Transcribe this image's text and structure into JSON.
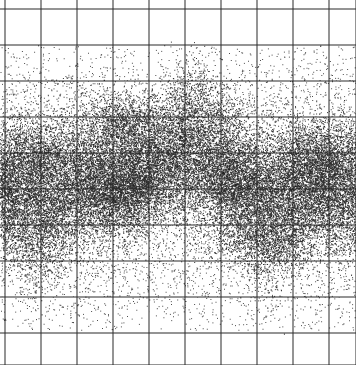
{
  "chart_data": {
    "type": "scatter",
    "title": "",
    "xlabel": "",
    "ylabel": "",
    "grid": true,
    "legend": "none",
    "axis_tick_labels_visible": false,
    "grid_columns": 10,
    "grid_rows": 10,
    "point_color": "#111111",
    "grid_color": "#2a2a2a",
    "background_color": "#ffffff",
    "series": [
      {
        "description_of_density": [
          {
            "region": "band-top-sparse",
            "relative_density": 0.25
          },
          {
            "region": "wave-core-dense",
            "relative_density": 1.0
          },
          {
            "region": "band-bottom-sparse",
            "relative_density": 0.25
          }
        ]
      }
    ]
  }
}
